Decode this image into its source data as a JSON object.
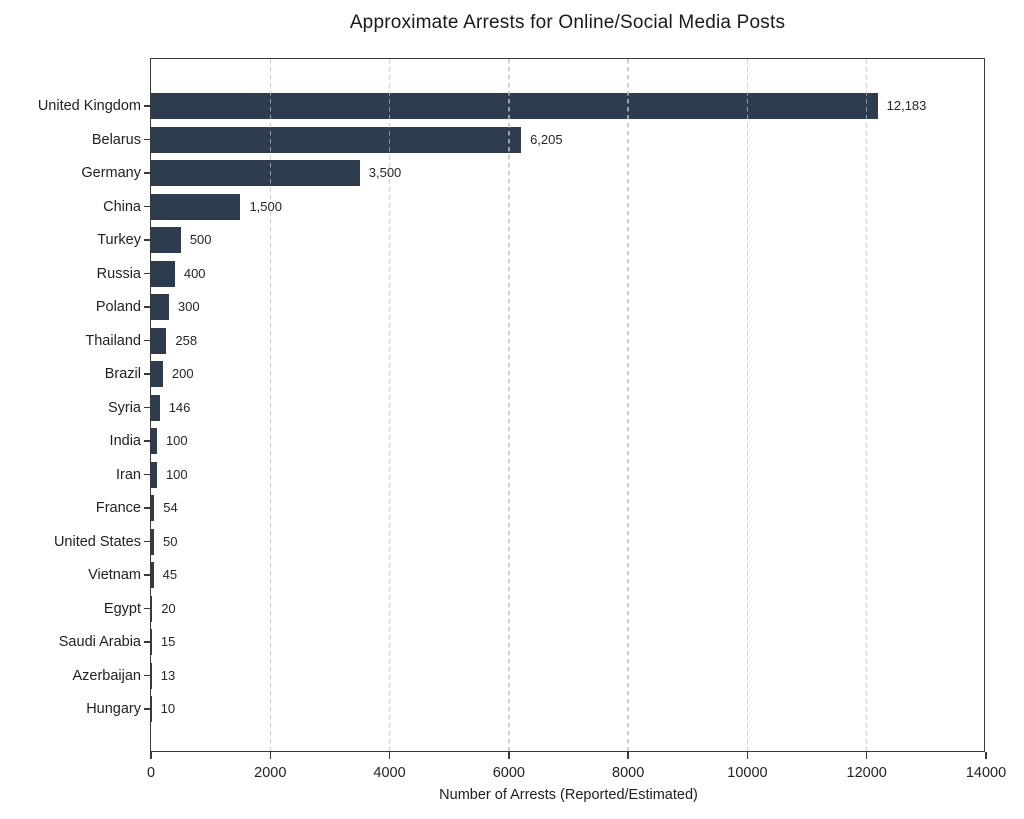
{
  "title": "Approximate Arrests for Online/Social Media Posts",
  "chart_data": {
    "type": "bar",
    "orientation": "horizontal",
    "title": "Approximate Arrests for Online/Social Media Posts",
    "categories": [
      "United Kingdom",
      "Belarus",
      "Germany",
      "China",
      "Turkey",
      "Russia",
      "Poland",
      "Thailand",
      "Brazil",
      "Syria",
      "India",
      "Iran",
      "France",
      "United States",
      "Vietnam",
      "Egypt",
      "Saudi Arabia",
      "Azerbaijan",
      "Hungary"
    ],
    "values": [
      12183,
      6205,
      3500,
      1500,
      500,
      400,
      300,
      258,
      200,
      146,
      100,
      100,
      54,
      50,
      45,
      20,
      15,
      13,
      10
    ],
    "value_labels": [
      "12,183",
      "6,205",
      "3,500",
      "1,500",
      "500",
      "400",
      "300",
      "258",
      "200",
      "146",
      "100",
      "100",
      "54",
      "50",
      "45",
      "20",
      "15",
      "13",
      "10"
    ],
    "xlabel": "Number of Arrests (Reported/Estimated)",
    "ylabel": "",
    "xlim": [
      0,
      14000
    ],
    "xticks": [
      0,
      2000,
      4000,
      6000,
      8000,
      10000,
      12000,
      14000
    ],
    "xtick_labels": [
      "0",
      "2000",
      "4000",
      "6000",
      "8000",
      "10000",
      "12000",
      "14000"
    ],
    "grid": "vertical-dashed",
    "legend": "none",
    "bar_color": "#2d3c4e",
    "gridline_color": "#c5c5c5",
    "background": "#ffffff"
  }
}
